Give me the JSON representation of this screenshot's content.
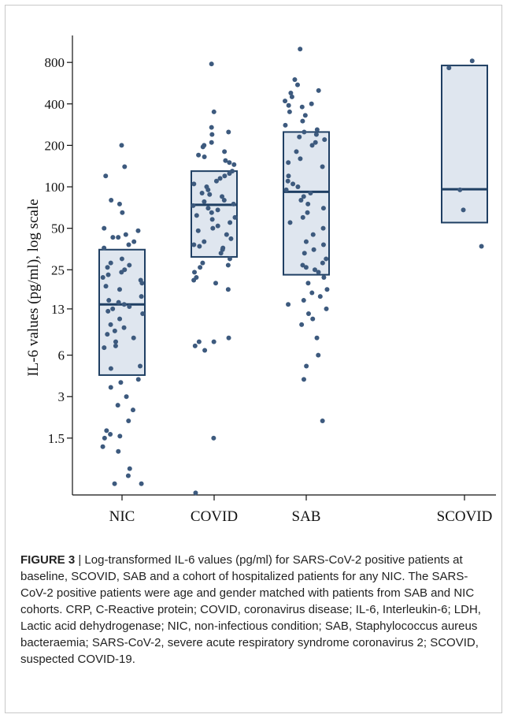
{
  "chart_data": {
    "type": "box-plot-with-jittered-points",
    "ylabel": "IL-6 values (pg/ml), log scale",
    "yscale": "log",
    "ylim": [
      0.58,
      1100
    ],
    "ytick_values": [
      1.5,
      3,
      6,
      13,
      25,
      50,
      100,
      200,
      400,
      800
    ],
    "ytick_labels": [
      "1.5",
      "3",
      "6",
      "13",
      "25",
      "50",
      "100",
      "200",
      "400",
      "800"
    ],
    "categories": [
      "NIC",
      "COVID",
      "SAB",
      "SCOVID"
    ],
    "boxes": [
      {
        "name": "NIC",
        "q1": 4.3,
        "median": 14,
        "q3": 35
      },
      {
        "name": "COVID",
        "q1": 31,
        "median": 74,
        "q3": 130
      },
      {
        "name": "SAB",
        "q1": 23,
        "median": 92,
        "q3": 250
      },
      {
        "name": "SCOVID",
        "q1": 55,
        "median": 96,
        "q3": 760
      }
    ],
    "points": [
      {
        "name": "NIC",
        "values": [
          200,
          140,
          120,
          80,
          75,
          65,
          50,
          48,
          45,
          43,
          43,
          40,
          38,
          36,
          30,
          28,
          27,
          26,
          25,
          24,
          23,
          22,
          21,
          20,
          19,
          18,
          16,
          15,
          14.5,
          14,
          13.5,
          13,
          12.5,
          12,
          11,
          10,
          9.5,
          9,
          8.5,
          8,
          7.5,
          7,
          6.8,
          5,
          4.8,
          4,
          3.8,
          3.5,
          3,
          2.6,
          2.4,
          2,
          1.7,
          1.6,
          1.55,
          1.5,
          1.3,
          1.2,
          0.9,
          0.8,
          0.7,
          0.7
        ]
      },
      {
        "name": "COVID",
        "values": [
          780,
          350,
          270,
          250,
          240,
          210,
          200,
          195,
          180,
          170,
          165,
          155,
          150,
          145,
          130,
          125,
          120,
          115,
          110,
          105,
          100,
          95,
          90,
          88,
          85,
          80,
          78,
          75,
          73,
          70,
          68,
          65,
          62,
          60,
          58,
          55,
          52,
          50,
          48,
          45,
          42,
          40,
          38,
          37,
          36,
          35,
          33,
          30,
          28,
          27,
          26,
          24,
          22,
          21,
          20,
          18,
          8,
          7.5,
          7.5,
          7,
          6.5,
          1.5,
          0.6
        ]
      },
      {
        "name": "SAB",
        "values": [
          1000,
          600,
          550,
          500,
          480,
          450,
          420,
          400,
          390,
          380,
          350,
          330,
          300,
          280,
          260,
          250,
          240,
          230,
          220,
          210,
          200,
          180,
          160,
          150,
          140,
          120,
          110,
          105,
          100,
          95,
          90,
          85,
          80,
          75,
          70,
          65,
          60,
          55,
          50,
          45,
          40,
          38,
          35,
          33,
          30,
          28,
          27,
          26,
          25,
          24,
          22,
          20,
          18,
          17,
          16,
          15,
          14,
          13,
          12,
          11,
          10,
          8,
          6,
          5,
          4,
          2
        ]
      },
      {
        "name": "SCOVID",
        "values": [
          820,
          730,
          95,
          68,
          37
        ]
      }
    ]
  },
  "caption": {
    "label": "FIGURE 3",
    "separator": " | ",
    "text": "Log-transformed IL-6 values (pg/ml) for SARS-CoV-2 positive patients at baseline, SCOVID, SAB and a cohort of hospitalized patients for any NIC. The SARS-CoV-2 positive patients were age and gender matched with patients from SAB and NIC cohorts. CRP, C-Reactive protein; COVID, coronavirus disease; IL-6, Interleukin-6; LDH, Lactic acid dehydrogenase; NIC, non-infectious condition; SAB, Staphylococcus aureus bacteraemia; SARS-CoV-2, severe acute respiratory syndrome coronavirus 2; SCOVID, suspected COVID-19."
  },
  "colors": {
    "point": "#3d5a7e",
    "box_fill": "#dfe6ef",
    "box_stroke": "#1f3f63",
    "axis": "#111111"
  }
}
